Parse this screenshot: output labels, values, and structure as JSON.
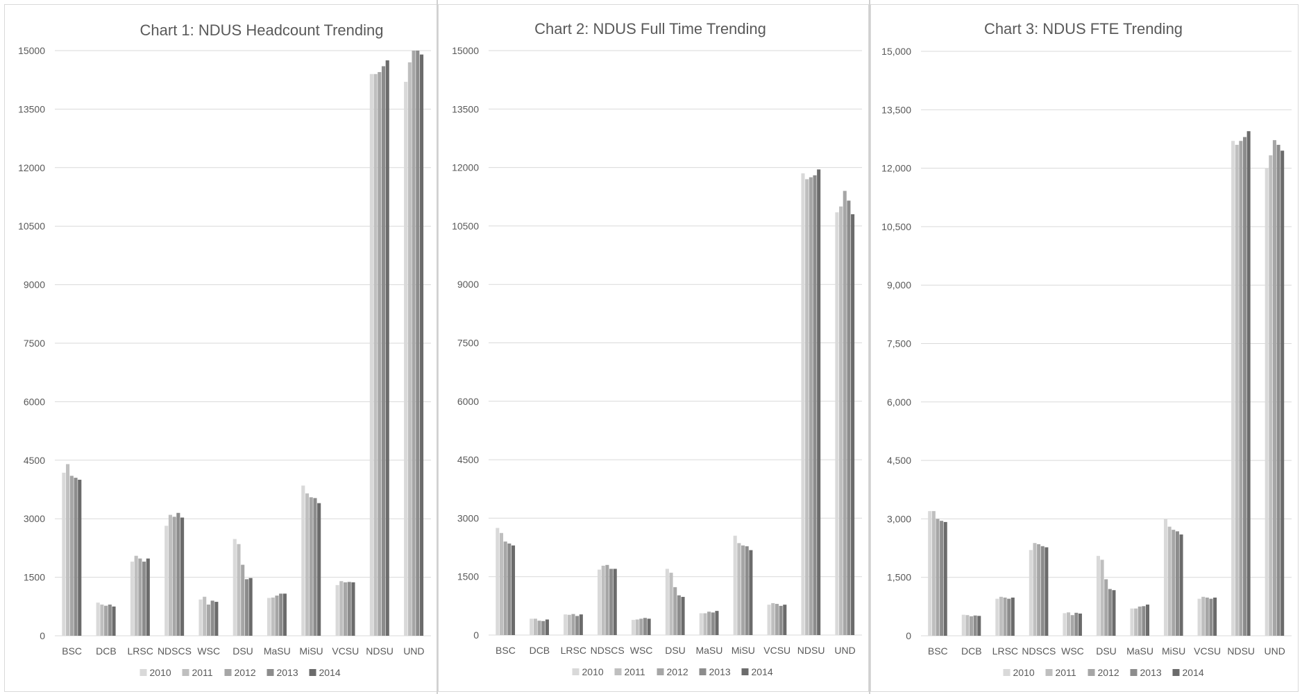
{
  "colors": {
    "2010": "#d9d9d9",
    "2011": "#bfbfbf",
    "2012": "#a6a6a6",
    "2013": "#8c8c8c",
    "2014": "#6b6b6b",
    "grid": "#d9d9d9",
    "text": "#595959"
  },
  "chart_data": [
    {
      "type": "bar",
      "title": "Chart 1: NDUS Headcount  Trending",
      "xlabel": "",
      "ylabel": "",
      "categories": [
        "BSC",
        "DCB",
        "LRSC",
        "NDSCS",
        "WSC",
        "DSU",
        "MaSU",
        "MiSU",
        "VCSU",
        "NDSU",
        "UND"
      ],
      "ylim": [
        0,
        15000
      ],
      "yticks": [
        0,
        1500,
        3000,
        4500,
        6000,
        7500,
        9000,
        10500,
        12000,
        13500,
        15000
      ],
      "ytick_labels": [
        "0",
        "1500",
        "3000",
        "4500",
        "6000",
        "7500",
        "9000",
        "10500",
        "12000",
        "13500",
        "15000"
      ],
      "legend": "bottom",
      "grid": true,
      "series": [
        {
          "name": "2010",
          "values": [
            4180,
            850,
            1900,
            2820,
            930,
            2480,
            970,
            3850,
            1300,
            14400,
            14200
          ]
        },
        {
          "name": "2011",
          "values": [
            4400,
            800,
            2050,
            3100,
            1000,
            2350,
            980,
            3650,
            1400,
            14400,
            14700
          ]
        },
        {
          "name": "2012",
          "values": [
            4100,
            770,
            1980,
            3050,
            800,
            1820,
            1030,
            3550,
            1370,
            14450,
            15000
          ]
        },
        {
          "name": "2013",
          "values": [
            4050,
            800,
            1900,
            3150,
            900,
            1450,
            1080,
            3530,
            1380,
            14600,
            15000
          ]
        },
        {
          "name": "2014",
          "values": [
            4000,
            750,
            1980,
            3030,
            870,
            1480,
            1080,
            3400,
            1370,
            14750,
            14900
          ]
        }
      ]
    },
    {
      "type": "bar",
      "title": "Chart 2: NDUS Full Time Trending",
      "xlabel": "",
      "ylabel": "",
      "categories": [
        "BSC",
        "DCB",
        "LRSC",
        "NDSCS",
        "WSC",
        "DSU",
        "MaSU",
        "MiSU",
        "VCSU",
        "NDSU",
        "UND"
      ],
      "ylim": [
        0,
        15000
      ],
      "yticks": [
        0,
        1500,
        3000,
        4500,
        6000,
        7500,
        9000,
        10500,
        12000,
        13500,
        15000
      ],
      "ytick_labels": [
        "0",
        "1500",
        "3000",
        "4500",
        "6000",
        "7500",
        "9000",
        "10500",
        "12000",
        "13500",
        "15000"
      ],
      "legend": "bottom",
      "grid": true,
      "series": [
        {
          "name": "2010",
          "values": [
            2750,
            420,
            530,
            1680,
            390,
            1700,
            560,
            2550,
            780,
            11850,
            10850
          ]
        },
        {
          "name": "2011",
          "values": [
            2620,
            420,
            520,
            1780,
            400,
            1600,
            560,
            2360,
            820,
            11700,
            11000
          ]
        },
        {
          "name": "2012",
          "values": [
            2400,
            370,
            540,
            1800,
            420,
            1230,
            600,
            2300,
            800,
            11750,
            11400
          ]
        },
        {
          "name": "2013",
          "values": [
            2350,
            360,
            490,
            1700,
            440,
            1020,
            580,
            2280,
            750,
            11800,
            11150
          ]
        },
        {
          "name": "2014",
          "values": [
            2300,
            400,
            530,
            1700,
            420,
            980,
            620,
            2180,
            780,
            11950,
            10800
          ]
        }
      ]
    },
    {
      "type": "bar",
      "title": "Chart 3: NDUS FTE Trending",
      "xlabel": "",
      "ylabel": "",
      "categories": [
        "BSC",
        "DCB",
        "LRSC",
        "NDSCS",
        "WSC",
        "DSU",
        "MaSU",
        "MiSU",
        "VCSU",
        "NDSU",
        "UND"
      ],
      "ylim": [
        0,
        15000
      ],
      "yticks": [
        0,
        1500,
        3000,
        4500,
        6000,
        7500,
        9000,
        10500,
        12000,
        13500,
        15000
      ],
      "ytick_labels": [
        "0",
        "1,500",
        "3,000",
        "4,500",
        "6,000",
        "7,500",
        "9,000",
        "10,500",
        "12,000",
        "13,500",
        "15,000"
      ],
      "legend": "bottom",
      "grid": true,
      "series": [
        {
          "name": "2010",
          "values": [
            3200,
            540,
            950,
            2200,
            580,
            2050,
            700,
            3000,
            950,
            12700,
            12000
          ]
        },
        {
          "name": "2011",
          "values": [
            3200,
            530,
            1000,
            2380,
            600,
            1950,
            700,
            2800,
            1000,
            12600,
            12330
          ]
        },
        {
          "name": "2012",
          "values": [
            3000,
            500,
            980,
            2350,
            530,
            1450,
            750,
            2720,
            980,
            12700,
            12720
          ]
        },
        {
          "name": "2013",
          "values": [
            2950,
            520,
            950,
            2300,
            590,
            1200,
            760,
            2680,
            950,
            12800,
            12600
          ]
        },
        {
          "name": "2014",
          "values": [
            2920,
            510,
            980,
            2270,
            570,
            1170,
            800,
            2600,
            980,
            12950,
            12450
          ]
        }
      ]
    }
  ]
}
